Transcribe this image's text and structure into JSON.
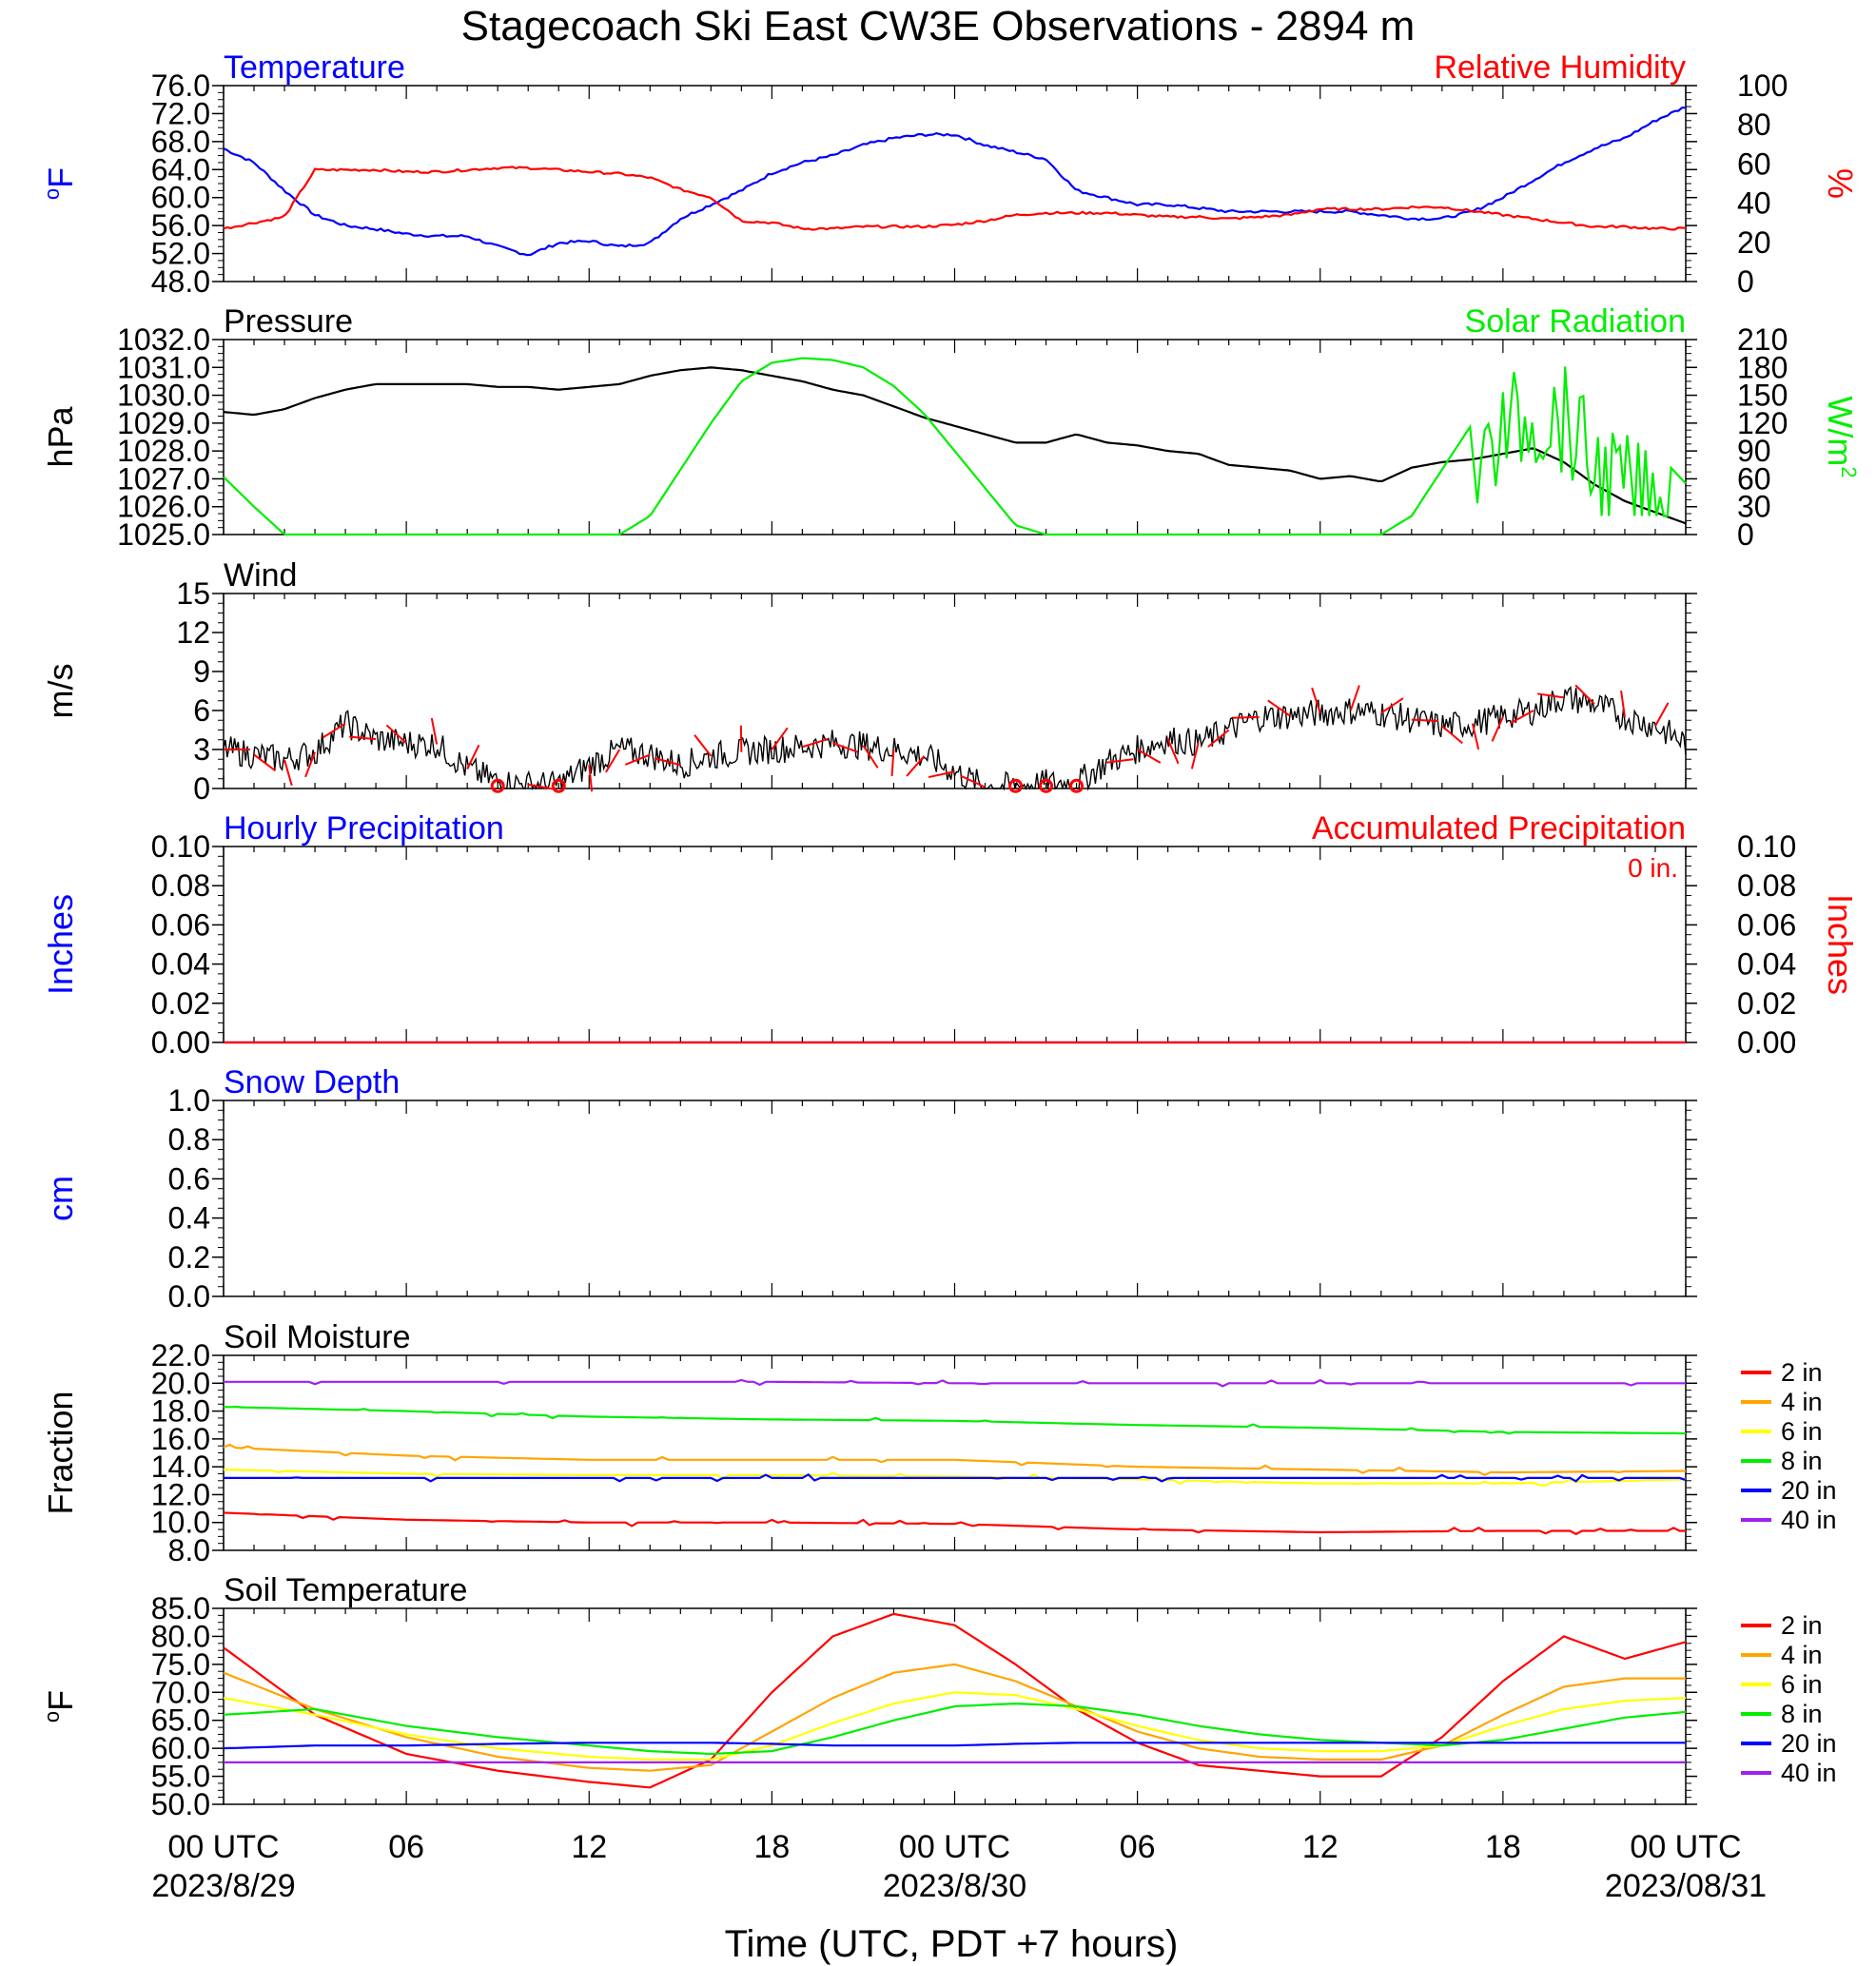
{
  "figure": {
    "title": "Stagecoach Ski East CW3E Observations - 2894 m",
    "xlabel": "Time (UTC, PDT +7 hours)",
    "x_ticks": [
      {
        "label": "00 UTC",
        "sub": "2023/8/29"
      },
      {
        "label": "06",
        "sub": ""
      },
      {
        "label": "12",
        "sub": ""
      },
      {
        "label": "18",
        "sub": ""
      },
      {
        "label": "00 UTC",
        "sub": "2023/8/30"
      },
      {
        "label": "06",
        "sub": ""
      },
      {
        "label": "12",
        "sub": ""
      },
      {
        "label": "18",
        "sub": ""
      },
      {
        "label": "00 UTC",
        "sub": "2023/08/31"
      }
    ],
    "colors": {
      "blue": "#0000ff",
      "red": "#ff0000",
      "green": "#00ee00",
      "black": "#000000"
    }
  },
  "chart_data": [
    {
      "panel": "temperature",
      "type": "line",
      "title_left": "Temperature",
      "title_right": "Relative Humidity",
      "ylabel_left": "oF",
      "ylabel_right": "%",
      "ylim": [
        48,
        76
      ],
      "ylim_right": [
        0,
        100
      ],
      "yticks": [
        "76.0",
        "72.0",
        "68.0",
        "64.0",
        "60.0",
        "56.0",
        "52.0",
        "48.0"
      ],
      "yticks_right": [
        "100",
        "80",
        "60",
        "40",
        "20",
        "0"
      ],
      "x_hours": [
        0,
        1,
        2,
        3,
        4,
        5,
        6,
        7,
        8,
        9,
        10,
        11,
        12,
        13,
        14,
        15,
        16,
        17,
        18,
        19,
        20,
        21,
        22,
        23,
        24,
        25,
        26,
        27,
        28,
        29,
        30,
        31,
        32,
        33,
        34,
        35,
        36,
        37,
        38,
        39,
        40,
        41,
        42,
        43,
        44,
        45,
        46,
        47,
        48
      ],
      "series": [
        {
          "name": "Temperature",
          "axis": "left",
          "color": "#0000ff",
          "values": [
            67,
            65,
            61,
            57.5,
            56,
            55.5,
            54.8,
            54.5,
            54.5,
            53,
            51.8,
            53.5,
            53.8,
            53,
            53.5,
            57,
            59,
            61,
            63.5,
            65,
            66,
            67.5,
            68.5,
            69,
            69,
            67.5,
            66.5,
            65.5,
            61,
            60,
            59,
            59,
            58.5,
            58,
            58,
            58,
            58,
            58,
            57.5,
            57,
            57,
            58,
            60,
            62.5,
            65,
            67,
            68.5,
            71,
            73
          ]
        },
        {
          "name": "Relative Humidity",
          "axis": "right",
          "color": "#ff0000",
          "values": [
            27,
            30,
            33,
            57,
            57,
            57,
            56,
            56,
            57,
            58,
            58,
            57,
            56,
            55,
            53,
            47,
            43,
            31,
            30,
            27,
            27,
            28,
            28,
            28,
            29,
            31,
            34,
            35,
            35,
            35,
            34,
            33,
            33,
            32,
            33,
            34,
            37,
            37,
            37,
            38,
            38,
            36,
            34,
            32,
            30,
            28,
            28,
            27,
            27
          ]
        }
      ]
    },
    {
      "panel": "pressure",
      "type": "line",
      "title_left": "Pressure",
      "title_right": "Solar Radiation",
      "ylabel_left": "hPa",
      "ylabel_right": "W/m2",
      "ylim": [
        1025,
        1032
      ],
      "ylim_right": [
        0,
        210
      ],
      "yticks": [
        "1032.0",
        "1031.0",
        "1030.0",
        "1029.0",
        "1028.0",
        "1027.0",
        "1026.0",
        "1025.0"
      ],
      "yticks_right": [
        "210",
        "180",
        "150",
        "120",
        "90",
        "60",
        "30",
        "0"
      ],
      "x_hours": [
        0,
        1,
        2,
        3,
        4,
        5,
        6,
        7,
        8,
        9,
        10,
        11,
        12,
        13,
        14,
        15,
        16,
        17,
        18,
        19,
        20,
        21,
        22,
        23,
        24,
        25,
        26,
        27,
        28,
        29,
        30,
        31,
        32,
        33,
        34,
        35,
        36,
        37,
        38,
        39,
        40,
        41,
        42,
        43,
        44,
        45,
        46,
        47,
        48
      ],
      "series": [
        {
          "name": "Pressure",
          "axis": "left",
          "color": "#000000",
          "values": [
            1029.4,
            1029.3,
            1029.5,
            1029.9,
            1030.2,
            1030.4,
            1030.4,
            1030.4,
            1030.4,
            1030.3,
            1030.3,
            1030.2,
            1030.3,
            1030.4,
            1030.7,
            1030.9,
            1031,
            1030.9,
            1030.7,
            1030.5,
            1030.2,
            1030,
            1029.6,
            1029.2,
            1028.9,
            1028.6,
            1028.3,
            1028.3,
            1028.6,
            1028.3,
            1028.2,
            1028,
            1027.9,
            1027.5,
            1027.4,
            1027.3,
            1027,
            1027.1,
            1026.9,
            1027.4,
            1027.6,
            1027.7,
            1027.9,
            1028.1,
            1027.6,
            1026.8,
            1026.2,
            1025.8,
            1025.4
          ]
        },
        {
          "name": "Solar Radiation",
          "axis": "right",
          "color": "#00ee00",
          "values": [
            62,
            30,
            0,
            0,
            0,
            0,
            0,
            0,
            0,
            0,
            0,
            0,
            0,
            0,
            20,
            70,
            120,
            165,
            185,
            190,
            188,
            180,
            160,
            130,
            90,
            50,
            10,
            0,
            0,
            0,
            0,
            0,
            0,
            0,
            0,
            0,
            0,
            0,
            0,
            20,
            70,
            120,
            170,
            190,
            185,
            130,
            110,
            90,
            55
          ]
        }
      ]
    },
    {
      "panel": "wind",
      "type": "line",
      "title_left": "Wind",
      "ylabel_left": "m/s",
      "ylim": [
        0,
        15
      ],
      "yticks": [
        "15",
        "12",
        "9",
        "6",
        "3",
        "0"
      ],
      "x_hours": [
        0,
        1,
        2,
        3,
        4,
        5,
        6,
        7,
        8,
        9,
        10,
        11,
        12,
        13,
        14,
        15,
        16,
        17,
        18,
        19,
        20,
        21,
        22,
        23,
        24,
        25,
        26,
        27,
        28,
        29,
        30,
        31,
        32,
        33,
        34,
        35,
        36,
        37,
        38,
        39,
        40,
        41,
        42,
        43,
        44,
        45,
        46,
        47,
        48
      ],
      "series": [
        {
          "name": "Wind speed",
          "axis": "left",
          "color": "#000000",
          "values": [
            3,
            2.6,
            2.2,
            2.8,
            5,
            3.8,
            3.5,
            3.4,
            1.5,
            0.5,
            0.3,
            0.3,
            1.8,
            3,
            2.6,
            1.8,
            2.5,
            2.8,
            3,
            3.2,
            3.5,
            3.3,
            3,
            2.5,
            1.3,
            0.1,
            0.2,
            0.4,
            0.4,
            2,
            3,
            3.8,
            3.5,
            4.5,
            5.5,
            5.6,
            5.8,
            6,
            5.8,
            5.3,
            4.8,
            5,
            5.5,
            6,
            7,
            6.5,
            5.5,
            4.8,
            3.5
          ]
        }
      ],
      "calm_hours": [
        9,
        11,
        26,
        27,
        28
      ]
    },
    {
      "panel": "precipitation",
      "type": "line",
      "title_left": "Hourly Precipitation",
      "title_right": "Accumulated Precipitation",
      "annotation": "0 in.",
      "ylabel_left": "Inches",
      "ylabel_right": "Inches",
      "ylim": [
        0,
        0.1
      ],
      "yticks": [
        "0.10",
        "0.08",
        "0.06",
        "0.04",
        "0.02",
        "0.00"
      ],
      "yticks_right": [
        "0.10",
        "0.08",
        "0.06",
        "0.04",
        "0.02",
        "0.00"
      ],
      "x_hours": [
        0,
        48
      ],
      "series": [
        {
          "name": "Hourly Precipitation",
          "axis": "left",
          "color": "#0000ff",
          "values": [
            0,
            0
          ]
        },
        {
          "name": "Accumulated Precipitation",
          "axis": "left",
          "color": "#ff0000",
          "values": [
            0,
            0
          ]
        }
      ]
    },
    {
      "panel": "snow",
      "type": "line",
      "title_left": "Snow Depth",
      "ylabel_left": "cm",
      "ylim": [
        0,
        1
      ],
      "yticks": [
        "1.0",
        "0.8",
        "0.6",
        "0.4",
        "0.2",
        "0.0"
      ],
      "series": []
    },
    {
      "panel": "soil_moisture",
      "type": "line",
      "title_left": "Soil Moisture",
      "ylabel_left": "Fraction",
      "ylim": [
        8,
        22
      ],
      "yticks": [
        "22.0",
        "20.0",
        "18.0",
        "16.0",
        "14.0",
        "12.0",
        "10.0",
        "8.0"
      ],
      "x_hours": [
        0,
        6,
        12,
        18,
        24,
        30,
        36,
        42,
        48
      ],
      "series": [
        {
          "name": "2 in",
          "color": "#ff0000",
          "values": [
            10.7,
            10.2,
            10.0,
            10.0,
            9.9,
            9.5,
            9.3,
            9.4,
            9.4
          ]
        },
        {
          "name": "4 in",
          "color": "#ffa500",
          "values": [
            15.4,
            14.8,
            14.5,
            14.5,
            14.5,
            14.0,
            13.8,
            13.6,
            13.7
          ]
        },
        {
          "name": "6 in",
          "color": "#ffff00",
          "values": [
            13.8,
            13.5,
            13.4,
            13.4,
            13.3,
            13.1,
            12.8,
            12.8,
            13.1
          ]
        },
        {
          "name": "8 in",
          "color": "#00ee00",
          "values": [
            18.3,
            18.0,
            17.6,
            17.4,
            17.3,
            17.0,
            16.8,
            16.5,
            16.4
          ]
        },
        {
          "name": "20 in",
          "color": "#0000ff",
          "values": [
            13.2,
            13.2,
            13.2,
            13.2,
            13.2,
            13.2,
            13.2,
            13.2,
            13.2
          ]
        },
        {
          "name": "40 in",
          "color": "#a020f0",
          "values": [
            20.1,
            20.1,
            20.1,
            20.1,
            20.0,
            20.0,
            20.0,
            20.0,
            20.0
          ]
        }
      ]
    },
    {
      "panel": "soil_temperature",
      "type": "line",
      "title_left": "Soil Temperature",
      "ylabel_left": "oF",
      "ylim": [
        50,
        85
      ],
      "yticks": [
        "85.0",
        "80.0",
        "75.0",
        "70.0",
        "65.0",
        "60.0",
        "55.0",
        "50.0"
      ],
      "x_hours": [
        0,
        3,
        6,
        9,
        12,
        14,
        16,
        18,
        20,
        22,
        24,
        26,
        28,
        30,
        32,
        34,
        36,
        38,
        40,
        42,
        44,
        46,
        48
      ],
      "series": [
        {
          "name": "2 in",
          "color": "#ff0000",
          "values": [
            78,
            66,
            59,
            56,
            54,
            53,
            58,
            70,
            80,
            84,
            82,
            75,
            67,
            61,
            57,
            56,
            55,
            55,
            62,
            72,
            80,
            76,
            79
          ]
        },
        {
          "name": "4 in",
          "color": "#ffa500",
          "values": [
            73.5,
            67,
            62,
            58.5,
            56.5,
            56,
            57,
            63,
            69,
            73.5,
            75,
            72,
            67.5,
            63,
            60,
            58.5,
            58,
            58,
            60.5,
            66,
            71,
            72.5,
            72.5
          ]
        },
        {
          "name": "6 in",
          "color": "#ffff00",
          "values": [
            69,
            66,
            62.5,
            60,
            58.5,
            58,
            58,
            60.5,
            64.5,
            68,
            70,
            69.5,
            67,
            64,
            61.5,
            60,
            59.5,
            59.5,
            60.5,
            64,
            67,
            68.5,
            69
          ]
        },
        {
          "name": "8 in",
          "color": "#00ee00",
          "values": [
            66,
            67,
            64,
            62,
            60.5,
            59.5,
            59,
            59.5,
            62,
            65,
            67.5,
            68,
            67.5,
            66,
            64,
            62.5,
            61.5,
            61,
            60.5,
            61.5,
            63.5,
            65.5,
            66.5
          ]
        },
        {
          "name": "20 in",
          "color": "#0000ff",
          "values": [
            60,
            60.5,
            60.5,
            60.8,
            61,
            61,
            61,
            60.8,
            60.5,
            60.5,
            60.5,
            60.8,
            61,
            61,
            61,
            61,
            61,
            61,
            61,
            61,
            61,
            61,
            61
          ]
        },
        {
          "name": "40 in",
          "color": "#a020f0",
          "values": [
            57.5,
            57.5,
            57.5,
            57.5,
            57.5,
            57.5,
            57.5,
            57.5,
            57.5,
            57.5,
            57.5,
            57.5,
            57.5,
            57.5,
            57.5,
            57.5,
            57.5,
            57.5,
            57.5,
            57.5,
            57.5,
            57.5,
            57.5
          ]
        }
      ]
    }
  ]
}
